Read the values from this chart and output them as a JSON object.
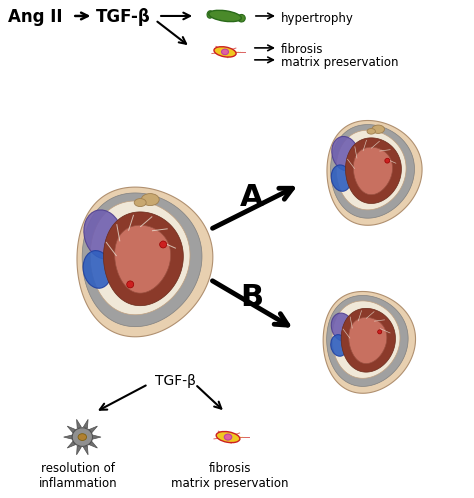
{
  "bg_color": "#ffffff",
  "text_ang_ii": "Ang II",
  "text_tgf_bold": "TGF-β",
  "text_hypertrophy": "hypertrophy",
  "text_fibrosis": "fibrosis",
  "text_matrix": "matrix preservation",
  "text_A": "A",
  "text_B": "B",
  "text_tgf_bottom": "TGF-β",
  "text_resolution": "resolution of\ninflammation",
  "text_fibrosis_matrix": "fibrosis\nmatrix preservation",
  "heart_outer": "#e8d0b0",
  "heart_gray": "#a0a0a0",
  "heart_inner_cream": "#f0e8d8",
  "heart_muscle_dark": "#8b3a2a",
  "heart_muscle_mid": "#b05040",
  "heart_muscle_light": "#c87060",
  "heart_white_line": "#e8ddd0",
  "heart_purple": "#7060b0",
  "heart_blue": "#3060c0",
  "heart_blue2": "#4070d0",
  "heart_tan": "#c8a870",
  "heart_red": "#cc2020",
  "cell_green_dark": "#2a6a1a",
  "cell_green_mid": "#4a8a2a",
  "cell_yellow": "#f0c820",
  "cell_yellow2": "#e8d040",
  "cell_pink": "#e060a0",
  "cell_red_line": "#cc2020",
  "macro_dark": "#505050",
  "macro_mid": "#707070",
  "macro_light": "#909090",
  "macro_gold": "#b08030"
}
